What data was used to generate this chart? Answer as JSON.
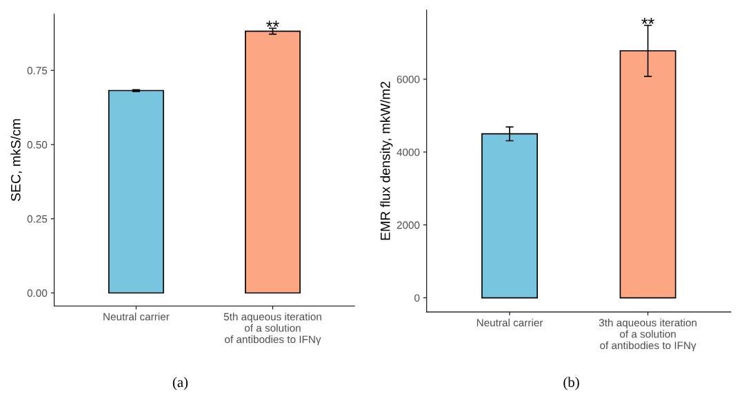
{
  "chart_data": [
    {
      "type": "bar",
      "ylabel": "SEC, mkS/cm",
      "categories": [
        "Neutral carrier",
        "5th aqueous iteration\nof a solution\nof antibodies to IFNγ"
      ],
      "values": [
        0.682,
        0.882
      ],
      "colors": [
        "#78c5df",
        "#fca782"
      ],
      "errors": [
        0.003,
        0.01
      ],
      "ylim": [
        -0.044,
        0.94
      ],
      "yticks": [
        {
          "value": 0,
          "label": "0.00"
        },
        0.25,
        {
          "value": 0.5,
          "label": "0.50"
        },
        0.75
      ],
      "grid": false,
      "legend": false,
      "annotations": [
        {
          "text": "**",
          "x": "5th aqueous iteration\nof a solution\nof antibodies to IFNγ",
          "y": 0.892
        },
        "(a)"
      ]
    },
    {
      "type": "bar",
      "ylabel": "EMR flux density, mkW/m2",
      "categories": [
        "Neutral carrier",
        "3th aqueous iteration\nof a solution\nof antibodies to IFNγ"
      ],
      "values": [
        4500,
        6780
      ],
      "colors": [
        "#78c5df",
        "#fca782"
      ],
      "errors": [
        190,
        700
      ],
      "ylim": [
        -390,
        7900
      ],
      "yticks": [
        0,
        2000,
        4000,
        6000
      ],
      "grid": false,
      "legend": false,
      "annotations": [
        {
          "text": "**",
          "x": "3th aqueous iteration\nof a solution\nof antibodies to IFNγ",
          "y": 7480
        },
        "(b)"
      ]
    }
  ]
}
